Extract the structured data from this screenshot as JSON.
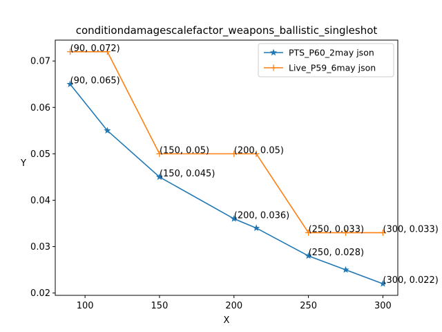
{
  "chart_data": {
    "type": "line",
    "title": "conditiondamagescalefactor_weapons_ballistic_singleshot",
    "xlabel": "X",
    "ylabel": "Y",
    "xlim": [
      80,
      310
    ],
    "ylim": [
      0.0195,
      0.0745
    ],
    "xticks": [
      100,
      150,
      200,
      250,
      300
    ],
    "yticks": [
      0.02,
      0.03,
      0.04,
      0.05,
      0.06,
      0.07
    ],
    "ytick_labels": [
      "0.02",
      "0.03",
      "0.04",
      "0.05",
      "0.06",
      "0.07"
    ],
    "grid": false,
    "legend_position": "top-right",
    "series": [
      {
        "name": "PTS_P60_2may json",
        "color": "#1f77b4",
        "marker": "star",
        "x": [
          90,
          115,
          150,
          200,
          215,
          250,
          275,
          300
        ],
        "y": [
          0.065,
          0.055,
          0.045,
          0.036,
          0.034,
          0.028,
          0.025,
          0.022
        ]
      },
      {
        "name": "Live_P59_6may json",
        "color": "#ff7f0e",
        "marker": "plus",
        "x": [
          90,
          115,
          150,
          200,
          215,
          250,
          275,
          300
        ],
        "y": [
          0.072,
          0.072,
          0.05,
          0.05,
          0.05,
          0.033,
          0.033,
          0.033
        ]
      }
    ],
    "annotations": [
      {
        "text": "(90, 0.072)",
        "x": 90,
        "y": 0.072
      },
      {
        "text": "(150, 0.05)",
        "x": 150,
        "y": 0.05
      },
      {
        "text": "(200, 0.05)",
        "x": 200,
        "y": 0.05
      },
      {
        "text": "(250, 0.033)",
        "x": 250,
        "y": 0.033
      },
      {
        "text": "(300, 0.033)",
        "x": 300,
        "y": 0.033
      },
      {
        "text": "(90, 0.065)",
        "x": 90,
        "y": 0.065
      },
      {
        "text": "(150, 0.045)",
        "x": 150,
        "y": 0.045
      },
      {
        "text": "(200, 0.036)",
        "x": 200,
        "y": 0.036
      },
      {
        "text": "(250, 0.028)",
        "x": 250,
        "y": 0.028
      },
      {
        "text": "(300, 0.022)",
        "x": 300,
        "y": 0.022
      }
    ]
  }
}
